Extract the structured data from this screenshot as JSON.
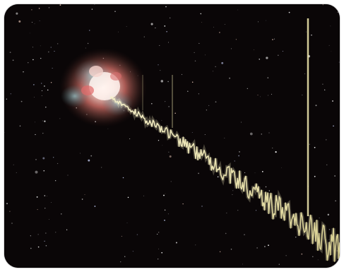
{
  "image": {
    "colors": {
      "background": "#0a0607",
      "nebula_core": "#f2e6e2",
      "nebula_mid": "#c76a63",
      "nebula_outer": "#5c9aa3",
      "beam": "#e8e0a8",
      "star": "#ffffff"
    }
  }
}
